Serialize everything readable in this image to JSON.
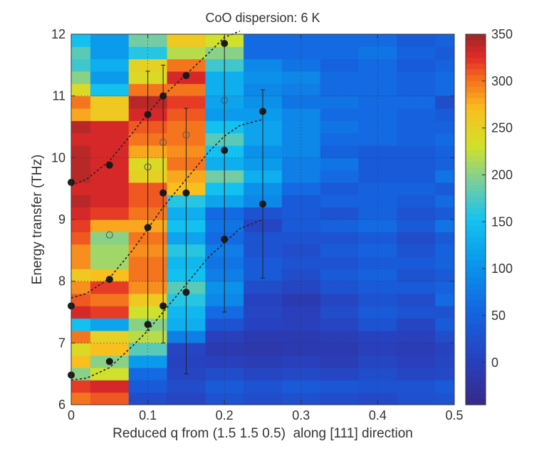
{
  "chart_data": {
    "type": "heatmap",
    "title": "CoO dispersion: 6 K",
    "xlabel": "Reduced q from (1.5 1.5 0.5)  along [111] direction",
    "ylabel": "Energy transfer (THz)",
    "xlim": [
      0,
      0.5
    ],
    "ylim": [
      6,
      12
    ],
    "xticks": [
      0,
      0.1,
      0.2,
      0.3,
      0.4,
      0.5
    ],
    "xtick_labels": [
      "0",
      "0.1",
      "0.2",
      "0.3",
      "0.4",
      "0.5"
    ],
    "yticks": [
      6,
      7,
      8,
      9,
      10,
      11,
      12
    ],
    "ytick_labels": [
      "6",
      "7",
      "8",
      "9",
      "10",
      "11",
      "12"
    ],
    "grid": "dotted",
    "colorbar": {
      "range": [
        -45,
        350
      ],
      "ticks": [
        0,
        50,
        100,
        150,
        200,
        250,
        300,
        350
      ],
      "tick_labels": [
        "0",
        "50",
        "100",
        "150",
        "200",
        "250",
        "300",
        "350"
      ],
      "colormap": "jet"
    },
    "grid_x_edges": [
      0,
      0.025,
      0.075,
      0.125,
      0.175,
      0.225,
      0.275,
      0.325,
      0.375,
      0.425,
      0.475,
      0.5
    ],
    "grid_y_edges": [
      6,
      6.2,
      6.4,
      6.6,
      6.8,
      7,
      7.2,
      7.4,
      7.6,
      7.8,
      8,
      8.2,
      8.4,
      8.6,
      8.8,
      9,
      9.2,
      9.4,
      9.6,
      9.8,
      10,
      10.2,
      10.4,
      10.6,
      10.8,
      11,
      11.2,
      11.4,
      11.6,
      11.8,
      12
    ],
    "intensity_rows_bottom_to_top": [
      [
        300,
        310,
        20,
        10,
        30,
        20,
        25,
        20,
        15,
        25,
        30
      ],
      [
        320,
        330,
        40,
        20,
        40,
        30,
        40,
        35,
        30,
        30,
        40
      ],
      [
        200,
        230,
        60,
        10,
        20,
        10,
        15,
        10,
        20,
        10,
        15
      ],
      [
        270,
        200,
        110,
        5,
        0,
        -5,
        0,
        -5,
        10,
        0,
        10
      ],
      [
        240,
        270,
        180,
        10,
        -10,
        -15,
        -10,
        -10,
        0,
        -5,
        5
      ],
      [
        300,
        250,
        220,
        80,
        0,
        -10,
        -10,
        -5,
        5,
        0,
        20
      ],
      [
        150,
        120,
        200,
        130,
        30,
        5,
        0,
        10,
        30,
        10,
        40
      ],
      [
        330,
        320,
        230,
        140,
        60,
        10,
        0,
        20,
        40,
        30,
        30
      ],
      [
        310,
        300,
        260,
        160,
        90,
        5,
        -10,
        10,
        30,
        20,
        60
      ],
      [
        290,
        320,
        290,
        180,
        100,
        20,
        10,
        30,
        40,
        40,
        50
      ],
      [
        260,
        270,
        300,
        150,
        80,
        40,
        20,
        40,
        50,
        30,
        40
      ],
      [
        290,
        210,
        300,
        140,
        70,
        40,
        30,
        30,
        40,
        40,
        50
      ],
      [
        290,
        210,
        290,
        160,
        80,
        30,
        20,
        40,
        50,
        30,
        50
      ],
      [
        310,
        200,
        300,
        120,
        60,
        30,
        30,
        30,
        40,
        20,
        40
      ],
      [
        320,
        280,
        280,
        150,
        70,
        10,
        40,
        50,
        60,
        40,
        70
      ],
      [
        330,
        320,
        300,
        130,
        60,
        30,
        40,
        30,
        50,
        30,
        40
      ],
      [
        340,
        330,
        310,
        160,
        120,
        90,
        40,
        50,
        50,
        40,
        60
      ],
      [
        330,
        330,
        310,
        270,
        150,
        100,
        60,
        40,
        50,
        50,
        40
      ],
      [
        340,
        330,
        250,
        280,
        190,
        130,
        80,
        60,
        40,
        40,
        70
      ],
      [
        340,
        330,
        240,
        300,
        130,
        110,
        80,
        70,
        40,
        40,
        50
      ],
      [
        340,
        330,
        280,
        290,
        150,
        100,
        90,
        50,
        40,
        40,
        50
      ],
      [
        330,
        330,
        300,
        300,
        180,
        120,
        90,
        60,
        60,
        50,
        60
      ],
      [
        340,
        330,
        310,
        300,
        150,
        120,
        90,
        70,
        60,
        50,
        50
      ],
      [
        280,
        260,
        330,
        310,
        110,
        110,
        90,
        60,
        60,
        50,
        40
      ],
      [
        300,
        260,
        340,
        320,
        120,
        100,
        70,
        70,
        60,
        60,
        20
      ],
      [
        240,
        150,
        300,
        300,
        130,
        90,
        80,
        60,
        60,
        50,
        60
      ],
      [
        200,
        110,
        240,
        330,
        130,
        100,
        90,
        60,
        60,
        50,
        60
      ],
      [
        170,
        130,
        250,
        300,
        170,
        90,
        70,
        50,
        60,
        40,
        50
      ],
      [
        180,
        110,
        160,
        220,
        200,
        60,
        60,
        60,
        70,
        50,
        40
      ],
      [
        150,
        110,
        190,
        260,
        230,
        60,
        60,
        60,
        60,
        40,
        50
      ]
    ],
    "points": [
      {
        "q": 0,
        "e": 6.48
      },
      {
        "q": 0.05,
        "e": 6.7
      },
      {
        "q": 0.1,
        "e": 7.3
      },
      {
        "q": 0.12,
        "e": 7.6
      },
      {
        "q": 0.15,
        "e": 7.82
      },
      {
        "q": 0.2,
        "e": 8.68
      },
      {
        "q": 0.25,
        "e": 9.25
      },
      {
        "q": 0,
        "e": 7.6
      },
      {
        "q": 0.05,
        "e": 8.03
      },
      {
        "q": 0.1,
        "e": 8.87
      },
      {
        "q": 0.12,
        "e": 9.43
      },
      {
        "q": 0.15,
        "e": 9.43
      },
      {
        "q": 0.2,
        "e": 10.12
      },
      {
        "q": 0.25,
        "e": 10.75
      },
      {
        "q": 0,
        "e": 9.6
      },
      {
        "q": 0.05,
        "e": 9.88
      },
      {
        "q": 0.1,
        "e": 10.7
      },
      {
        "q": 0.12,
        "e": 11.0
      },
      {
        "q": 0.15,
        "e": 11.33
      },
      {
        "q": 0.2,
        "e": 11.85
      }
    ],
    "error_bars": [
      {
        "q": 0.1,
        "lo": 7.2,
        "hi": 11.4
      },
      {
        "q": 0.12,
        "lo": 7.0,
        "hi": 11.5
      },
      {
        "q": 0.15,
        "lo": 6.5,
        "hi": 10.8
      },
      {
        "q": 0.2,
        "lo": 7.5,
        "hi": 12.0
      },
      {
        "q": 0.25,
        "lo": 8.05,
        "hi": 11.1
      }
    ],
    "open_circles": [
      {
        "q": 0.2,
        "e": 10.93
      },
      {
        "q": 0.1,
        "e": 9.85
      },
      {
        "q": 0.12,
        "e": 10.25
      },
      {
        "q": 0.15,
        "e": 10.37
      },
      {
        "q": 0.05,
        "e": 8.75
      }
    ],
    "fit_curves": [
      [
        [
          0,
          6.4
        ],
        [
          0.02,
          6.43
        ],
        [
          0.05,
          6.6
        ],
        [
          0.08,
          6.95
        ],
        [
          0.1,
          7.2
        ],
        [
          0.12,
          7.5
        ],
        [
          0.15,
          7.95
        ],
        [
          0.18,
          8.4
        ],
        [
          0.2,
          8.62
        ],
        [
          0.22,
          8.85
        ],
        [
          0.25,
          9.0
        ]
      ],
      [
        [
          0,
          7.73
        ],
        [
          0.02,
          7.8
        ],
        [
          0.05,
          8.05
        ],
        [
          0.08,
          8.5
        ],
        [
          0.1,
          8.85
        ],
        [
          0.12,
          9.2
        ],
        [
          0.15,
          9.65
        ],
        [
          0.18,
          10.1
        ],
        [
          0.2,
          10.35
        ],
        [
          0.22,
          10.52
        ],
        [
          0.25,
          10.62
        ]
      ],
      [
        [
          0,
          9.55
        ],
        [
          0.02,
          9.65
        ],
        [
          0.05,
          9.95
        ],
        [
          0.08,
          10.4
        ],
        [
          0.1,
          10.72
        ],
        [
          0.12,
          11.0
        ],
        [
          0.15,
          11.35
        ],
        [
          0.18,
          11.7
        ],
        [
          0.2,
          11.95
        ],
        [
          0.22,
          12.1
        ]
      ]
    ]
  }
}
